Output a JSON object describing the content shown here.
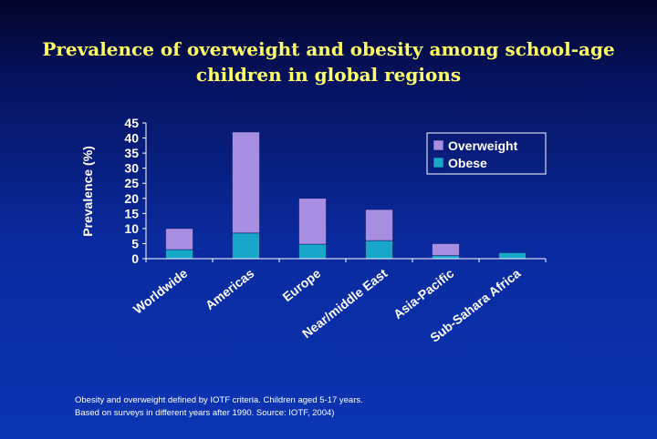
{
  "title_lines": [
    "Prevalence of overweight and obesity among school-age",
    "children in global regions"
  ],
  "footnote_lines": [
    "Obesity and overweight defined by IOTF criteria. Children aged 5-17 years.",
    "Based on surveys in different years after 1990. Source: IOTF, 2004)"
  ],
  "colors": {
    "overweight": "#a78ee0",
    "obese": "#18a6c9",
    "title": "#ffff66",
    "text": "#ffffff"
  },
  "chart_data": {
    "type": "bar",
    "stacked": true,
    "title": "Prevalence of overweight and obesity among school-age children in global regions",
    "xlabel": "",
    "ylabel": "Prevalence (%)",
    "ylim": [
      0,
      45
    ],
    "yticks": [
      0,
      5,
      10,
      15,
      20,
      25,
      30,
      35,
      40,
      45
    ],
    "categories": [
      "Worldwide",
      "Americas",
      "Europe",
      "Near/middle East",
      "Asia-Pacific",
      "Sub-Sahara Africa"
    ],
    "series": [
      {
        "name": "Obese",
        "values": [
          3,
          8.5,
          4.8,
          6,
          1,
          2
        ]
      },
      {
        "name": "Overweight",
        "values": [
          7,
          33.5,
          15.2,
          10.3,
          4,
          0
        ]
      }
    ],
    "legend_position": "right",
    "legend_order": [
      "Overweight",
      "Obese"
    ],
    "grid": false
  }
}
